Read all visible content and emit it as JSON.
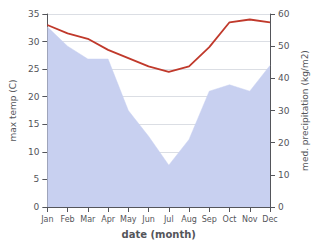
{
  "chart_data": {
    "type": "line",
    "categories": [
      "Jan",
      "Feb",
      "Mar",
      "Apr",
      "May",
      "Jun",
      "Jul",
      "Aug",
      "Sep",
      "Oct",
      "Nov",
      "Dec"
    ],
    "series": [
      {
        "type": "area",
        "color": "#c8d0f0",
        "axis": "y2",
        "values": [
          56,
          50,
          46,
          46,
          30,
          22,
          13,
          21,
          36,
          38,
          36,
          44
        ]
      },
      {
        "type": "line",
        "color": "#c0392b",
        "values": [
          33.0,
          31.5,
          30.5,
          28.5,
          27.0,
          25.5,
          24.5,
          25.5,
          29.0,
          33.5,
          34.0,
          33.5
        ]
      }
    ],
    "xlabel": "date (month)",
    "ylabel": "max temp (C)",
    "y2label": "med. precipitation (kg/m2)",
    "ylim": [
      0,
      35
    ],
    "yticks": [
      0,
      5,
      10,
      15,
      20,
      25,
      30,
      35
    ],
    "y2lim": [
      0,
      60
    ],
    "y2ticks": [
      0,
      10,
      20,
      30,
      40,
      50,
      60
    ],
    "grid": true
  }
}
